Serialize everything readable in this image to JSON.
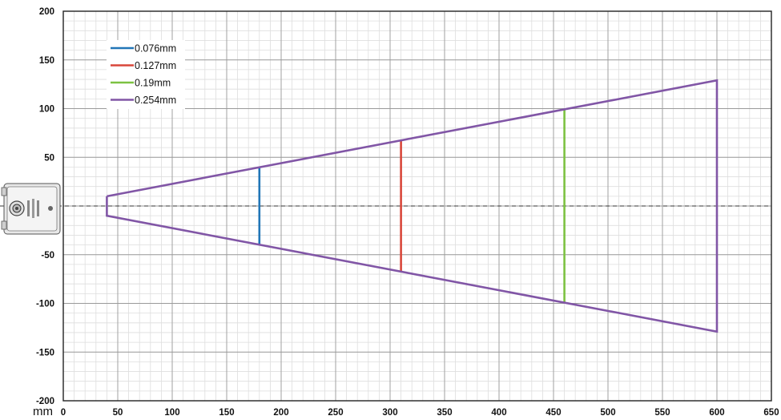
{
  "chart_data": {
    "type": "line",
    "xlabel": "mm",
    "ylabel": "",
    "xlim": [
      0,
      650
    ],
    "ylim": [
      -200,
      200
    ],
    "x_ticks": [
      0,
      50,
      100,
      150,
      200,
      250,
      300,
      350,
      400,
      450,
      500,
      550,
      600,
      650
    ],
    "y_ticks": [
      200,
      150,
      100,
      50,
      0,
      -50,
      -100,
      -150,
      -200
    ],
    "x_tick_labels": [
      "0",
      "50",
      "100",
      "150",
      "200",
      "250",
      "300",
      "350",
      "400",
      "450",
      "500",
      "550",
      "600",
      "650"
    ],
    "y_tick_labels": [
      "200",
      "150",
      "100",
      "50",
      "",
      "-50",
      "-100",
      "-150",
      "-200"
    ],
    "grid": true,
    "legend_position": "top-left",
    "series": [
      {
        "name": "0.076mm",
        "color": "#2176b7",
        "x": [
          180,
          180
        ],
        "y": [
          39,
          -39
        ]
      },
      {
        "name": "0.127mm",
        "color": "#d9473a",
        "x": [
          310,
          310
        ],
        "y": [
          67,
          -67
        ]
      },
      {
        "name": "0.19mm",
        "color": "#7dc242",
        "x": [
          460,
          460
        ],
        "y": [
          99,
          -99
        ]
      },
      {
        "name": "0.254mm",
        "color": "#8156a6",
        "x": [
          40,
          600,
          600,
          40,
          40
        ],
        "y": [
          10,
          129,
          -129,
          -10,
          10
        ]
      }
    ]
  },
  "device_icon": "barcode-scanner-icon"
}
